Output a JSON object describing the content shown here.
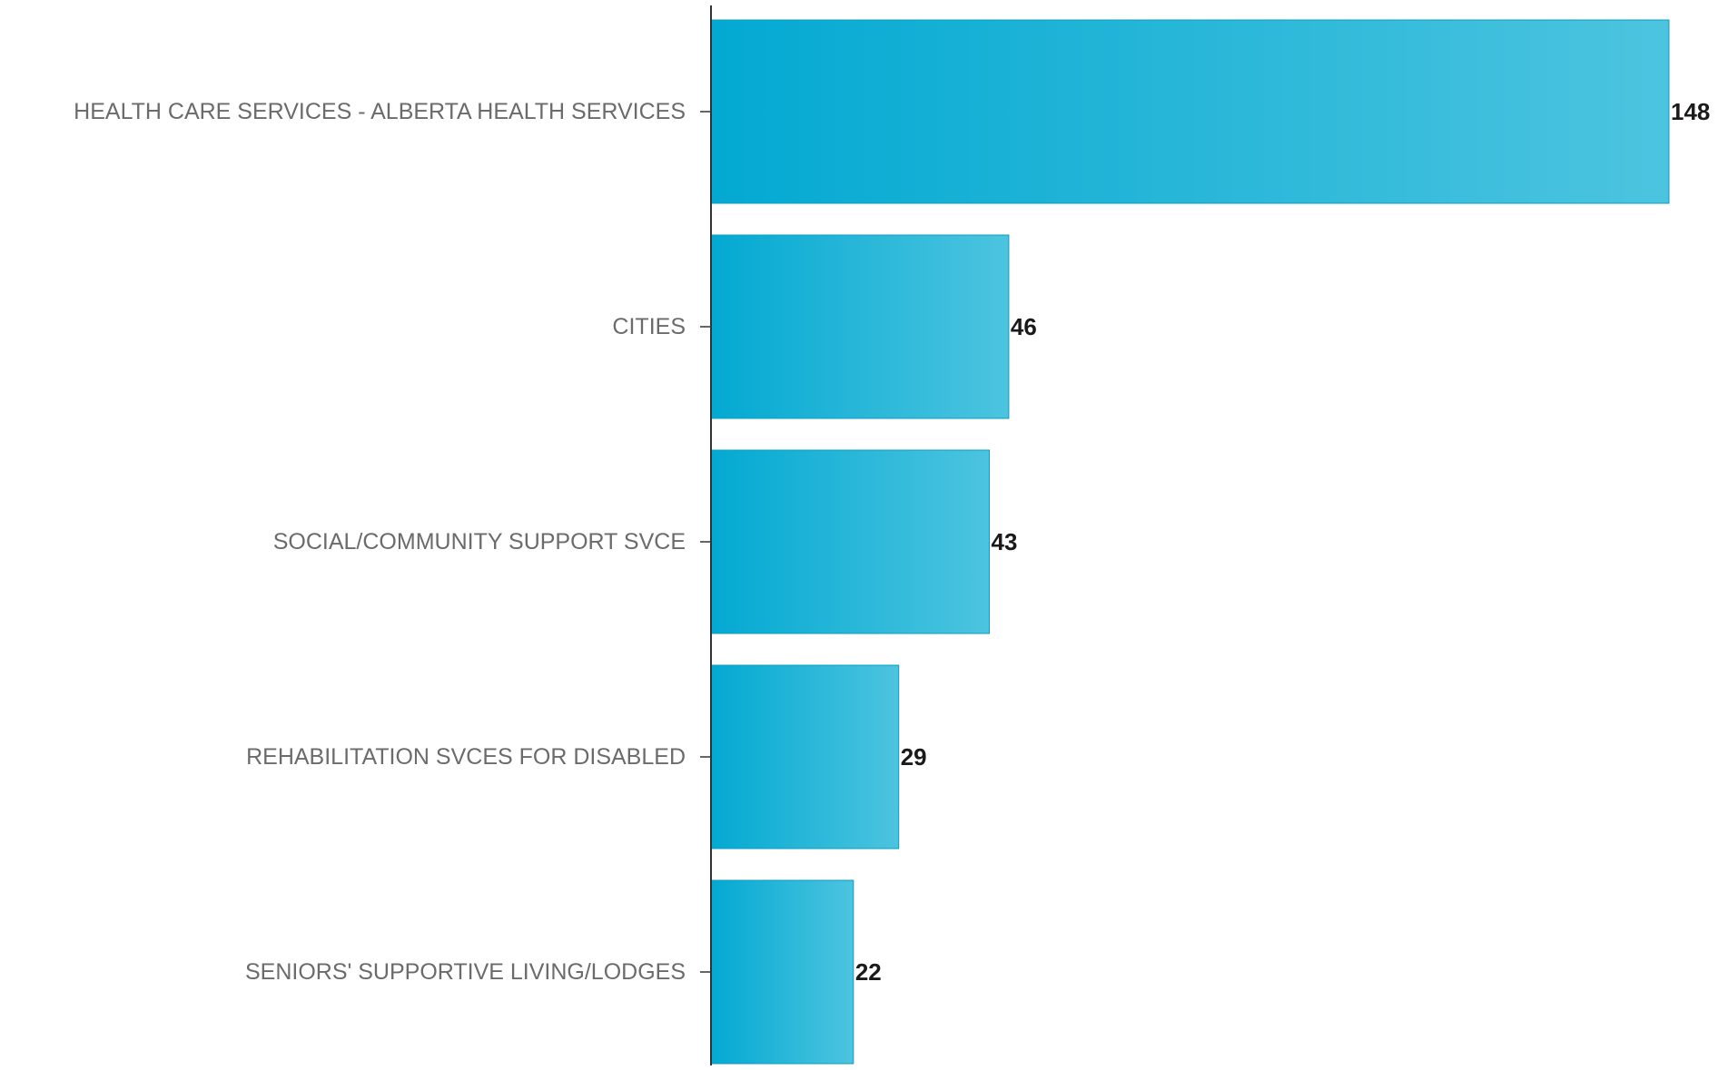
{
  "chart_data": {
    "type": "bar",
    "orientation": "horizontal",
    "title": "",
    "xlabel": "",
    "ylabel": "",
    "categories": [
      "HEALTH CARE SERVICES - ALBERTA HEALTH SERVICES",
      "CITIES",
      "SOCIAL/COMMUNITY SUPPORT SVCE",
      "REHABILITATION SVCES FOR DISABLED",
      "SENIORS' SUPPORTIVE LIVING/LODGES"
    ],
    "values": [
      148,
      46,
      43,
      29,
      22
    ],
    "value_labels": [
      "148",
      "46",
      "43",
      "29",
      "22"
    ],
    "xlim": [
      0,
      148
    ],
    "grid": false,
    "legend": "none",
    "colors": {
      "bar_start": "#03a9d2",
      "bar_end": "#4cc4df",
      "bar_stroke": "#0a9cc2",
      "axis": "#333333",
      "category_text": "#6b6b6b",
      "value_text": "#1a1a1a"
    }
  }
}
